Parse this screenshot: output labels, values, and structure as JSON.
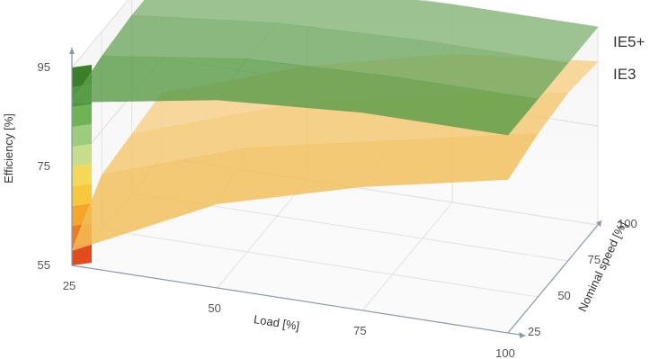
{
  "chart_data": {
    "type": "surface-3d",
    "axes": {
      "x": {
        "label": "Load [%]",
        "ticks": [
          "25",
          "50",
          "75",
          "100"
        ],
        "range": [
          25,
          100
        ]
      },
      "y": {
        "label": "Nominal speed [%]",
        "ticks": [
          "25",
          "50",
          "75",
          "100"
        ],
        "range": [
          25,
          100
        ]
      },
      "z": {
        "label": "Efficiency [%]",
        "ticks": [
          "55",
          "75",
          "95"
        ],
        "range": [
          55,
          95
        ]
      }
    },
    "grid": true,
    "series": [
      {
        "name": "IE5+",
        "color": "#3f8a2a",
        "load": [
          25,
          50,
          75,
          100
        ],
        "speed": [
          25,
          50,
          75,
          100
        ],
        "efficiency": [
          [
            88,
            93,
            95,
            95
          ],
          [
            90,
            94,
            95,
            95
          ],
          [
            91,
            94,
            95,
            95
          ],
          [
            91,
            94,
            95,
            95
          ]
        ]
      },
      {
        "name": "IE3",
        "color": "#f0b23a",
        "load": [
          25,
          50,
          75,
          100
        ],
        "speed": [
          25,
          50,
          75,
          100
        ],
        "efficiency": [
          [
            58,
            72,
            80,
            86
          ],
          [
            66,
            76,
            82,
            88
          ],
          [
            67,
            77,
            84,
            89
          ],
          [
            68,
            78,
            85,
            88
          ]
        ]
      }
    ],
    "colorbar": {
      "colors": [
        "#e34a1c",
        "#ee7a22",
        "#f4a52a",
        "#f7c83a",
        "#f4d856",
        "#c9dc8a",
        "#9ccc7c",
        "#6fb357",
        "#4e9a3b",
        "#3b7f2b"
      ]
    }
  }
}
